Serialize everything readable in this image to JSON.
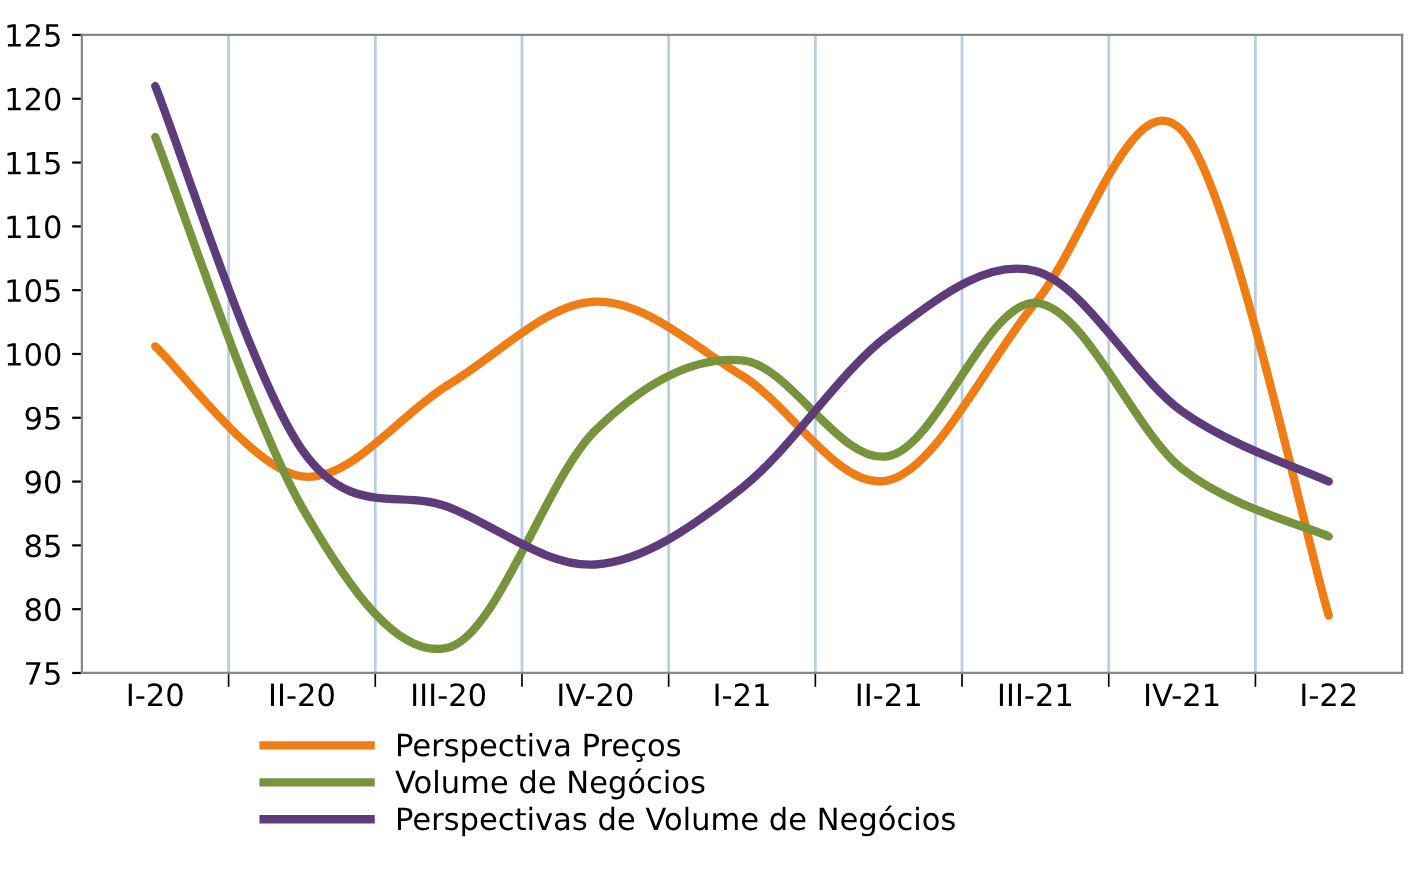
{
  "chart_data": {
    "type": "line",
    "categories": [
      "I-20",
      "II-20",
      "III-20",
      "IV-20",
      "I-21",
      "II-21",
      "III-21",
      "IV-21",
      "I-22"
    ],
    "series": [
      {
        "name": "Perspectiva Preços",
        "color": "#f07c14",
        "values": [
          100.6,
          90.4,
          97.6,
          104.1,
          98.3,
          90.1,
          104,
          117.5,
          79.5
        ]
      },
      {
        "name": "Volume de Negócios",
        "color": "#77933c",
        "values": [
          117,
          88,
          77,
          94,
          99.5,
          92,
          104,
          91,
          85.7
        ]
      },
      {
        "name": "Perspectivas de Volume de Negócios",
        "color": "#5e3c7c",
        "values": [
          121,
          92.5,
          88,
          83.5,
          89.5,
          101.5,
          106.5,
          95.5,
          90
        ]
      }
    ],
    "ylim": [
      75,
      125
    ],
    "yticks": [
      75,
      80,
      85,
      90,
      95,
      100,
      105,
      110,
      115,
      120,
      125
    ],
    "grid": "x",
    "legend": "bottom",
    "marker": "none",
    "line_style": "solid"
  }
}
